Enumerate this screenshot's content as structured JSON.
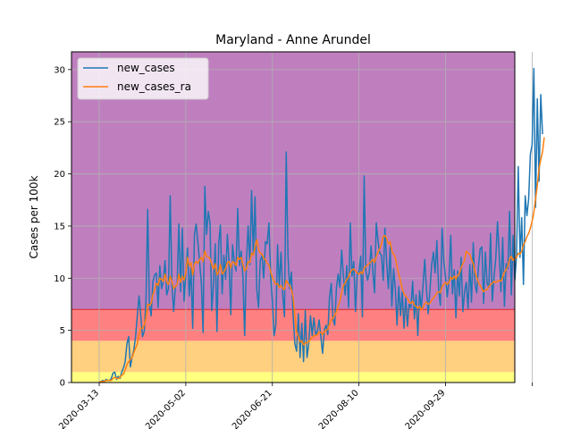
{
  "chart_data": {
    "type": "line",
    "title": "Maryland - Anne Arundel",
    "xlabel": "",
    "ylabel": "Cases per 100k",
    "x_start_date": "2020-03-13",
    "x_range": [
      -16,
      240
    ],
    "ylim": [
      0,
      31.7
    ],
    "grid": true,
    "legend_position": "top-left",
    "x_tick_labels": [
      "2020-03-13",
      "2020-05-02",
      "2020-06-21",
      "2020-08-10",
      "2020-09-29"
    ],
    "y_ticks": [
      0,
      5,
      10,
      15,
      20,
      25,
      30
    ],
    "y_tick_labels": [
      "0",
      "5",
      "10",
      "15",
      "20",
      "25",
      "30"
    ],
    "bands": [
      {
        "from": 0,
        "to": 1,
        "color": "#ffff80"
      },
      {
        "from": 1,
        "to": 4,
        "color": "#ffd080"
      },
      {
        "from": 4,
        "to": 7,
        "color": "#ff8080"
      },
      {
        "from": 7,
        "to": 31.7,
        "color": "#bf7fbf"
      }
    ],
    "series": [
      {
        "name": "new_cases",
        "color": "#1f77b4",
        "values": [
          0,
          0.1,
          0.2,
          0.1,
          0.3,
          0.2,
          0.2,
          0.4,
          0.9,
          1.0,
          0.3,
          0.6,
          0.4,
          1.0,
          1.4,
          2.0,
          3.7,
          4.4,
          1.5,
          2.5,
          3.1,
          4.4,
          6.4,
          8.3,
          6.4,
          4.4,
          4.9,
          7.8,
          16.6,
          7.5,
          6.4,
          9.7,
          10.3,
          10.5,
          7.2,
          11.2,
          9.0,
          9.7,
          11.7,
          8.4,
          9.0,
          17.9,
          9.4,
          6.8,
          9.2,
          9.4,
          15.2,
          8.7,
          14.8,
          7.8,
          10.4,
          12.9,
          8.3,
          11.0,
          5.2,
          14.2,
          15.2,
          13.4,
          11.5,
          9.5,
          4.8,
          18.8,
          14.2,
          16.4,
          15.3,
          6.9,
          9.5,
          13.3,
          4.9,
          13.3,
          15.1,
          8.5,
          12.2,
          9.9,
          14.2,
          11.5,
          6.5,
          13.2,
          11.6,
          10.7,
          16.7,
          11.2,
          12.6,
          10.1,
          4.5,
          11.6,
          15.0,
          11.3,
          18.4,
          12.3,
          17.8,
          8.9,
          7.2,
          11.7,
          12.2,
          10.0,
          13.5,
          13.3,
          15.3,
          10.2,
          7.8,
          4.5,
          5.5,
          13.2,
          9.3,
          12.5,
          8.4,
          6.3,
          22.1,
          12.2,
          9.0,
          10.6,
          6.4,
          3.7,
          3.0,
          6.6,
          2.4,
          5.7,
          2.0,
          6.9,
          2.4,
          3.7,
          6.4,
          4.5,
          6.2,
          4.6,
          4.9,
          6.0,
          4.4,
          2.8,
          5.0,
          5.5,
          4.6,
          8.2,
          9.5,
          6.1,
          5.5,
          9.1,
          10.4,
          9.1,
          12.7,
          10.3,
          8.4,
          11.2,
          7.2,
          15.3,
          10.2,
          11.6,
          6.8,
          10.5,
          10.6,
          12.1,
          6.3,
          19.8,
          10.7,
          9.8,
          10.6,
          13.1,
          10.7,
          8.6,
          15.3,
          13.6,
          12.4,
          12.2,
          9.8,
          14.8,
          11.5,
          9.0,
          13.0,
          7.3,
          10.9,
          9.0,
          5.5,
          9.2,
          6.4,
          8.7,
          5.2,
          8.1,
          5.4,
          7.5,
          7.2,
          9.7,
          6.1,
          8.4,
          4.5,
          8.8,
          7.1,
          9.3,
          11.8,
          8.9,
          6.6,
          8.9,
          11.3,
          12.5,
          10.5,
          13.6,
          8.9,
          7.4,
          14.8,
          11.6,
          10.1,
          8.2,
          9.9,
          14.1,
          8.5,
          10.8,
          6.2,
          10.7,
          8.3,
          12.0,
          6.8,
          8.7,
          9.6,
          7.1,
          11.3,
          7.7,
          13.4,
          9.5,
          8.6,
          11.1,
          12.8,
          13.0,
          7.6,
          12.5,
          9.5,
          9.1,
          14.3,
          7.8,
          10.1,
          11.9,
          15.4,
          12.4,
          8.7,
          13.9,
          7.3,
          11.4,
          10.9,
          16.4,
          8.4,
          14.1,
          9.8,
          12.2,
          20.7,
          12.0,
          15.8,
          9.4,
          17.9,
          16.0,
          17.6,
          21.9,
          22.8,
          30.1,
          16.8,
          27.2,
          19.3,
          27.6,
          23.8
        ]
      },
      {
        "name": "new_cases_ra",
        "color": "#ff7f0e",
        "values": [
          0,
          0.1,
          0.1,
          0.1,
          0.2,
          0.2,
          0.2,
          0.2,
          0.4,
          0.5,
          0.4,
          0.4,
          0.5,
          0.7,
          0.8,
          1.2,
          1.7,
          2.0,
          2.2,
          2.4,
          2.9,
          3.3,
          3.7,
          4.6,
          5.2,
          5.2,
          5.5,
          6.2,
          7.5,
          7.4,
          7.6,
          8.4,
          8.9,
          9.5,
          9.3,
          10.0,
          9.9,
          9.7,
          10.4,
          9.6,
          9.4,
          10.2,
          9.7,
          9.0,
          9.2,
          9.4,
          10.4,
          9.6,
          10.2,
          9.8,
          10.5,
          12.0,
          11.2,
          11.5,
          10.3,
          11.4,
          11.6,
          11.4,
          11.8,
          12.0,
          11.6,
          12.6,
          12.1,
          12.0,
          11.9,
          11.3,
          10.9,
          11.4,
          10.3,
          10.6,
          11.3,
          10.4,
          10.6,
          10.9,
          11.5,
          11.6,
          11.0,
          11.6,
          11.5,
          11.2,
          12.0,
          11.8,
          12.0,
          11.3,
          10.7,
          10.9,
          11.6,
          11.5,
          12.4,
          12.2,
          13.0,
          13.7,
          12.8,
          12.4,
          12.3,
          11.9,
          11.8,
          11.4,
          11.3,
          10.6,
          10.1,
          9.7,
          9.4,
          9.5,
          9.1,
          9.3,
          9.0,
          8.9,
          9.8,
          9.5,
          9.3,
          8.9,
          8.2,
          6.3,
          4.8,
          4.4,
          3.9,
          4.0,
          3.6,
          3.8,
          3.8,
          3.9,
          4.2,
          4.3,
          4.5,
          4.5,
          4.6,
          4.8,
          4.8,
          4.6,
          4.9,
          5.0,
          5.1,
          5.6,
          6.0,
          6.2,
          6.4,
          6.8,
          7.3,
          7.8,
          8.6,
          9.3,
          9.5,
          9.9,
          10.1,
          10.6,
          10.8,
          10.9,
          10.7,
          10.5,
          10.4,
          10.6,
          10.4,
          11.0,
          11.1,
          11.3,
          11.4,
          11.6,
          11.8,
          11.5,
          12.1,
          12.5,
          12.8,
          13.3,
          14.0,
          14.1,
          13.8,
          13.3,
          13.5,
          12.6,
          12.3,
          12.0,
          11.1,
          10.4,
          9.7,
          9.0,
          8.5,
          8.3,
          8.1,
          7.7,
          7.6,
          7.8,
          7.4,
          7.3,
          7.1,
          7.3,
          7.0,
          7.2,
          7.6,
          7.7,
          7.5,
          7.6,
          7.9,
          8.1,
          8.3,
          8.6,
          8.7,
          8.6,
          9.2,
          9.4,
          9.6,
          9.4,
          9.6,
          10.1,
          9.9,
          10.2,
          9.9,
          10.3,
          10.4,
          11.0,
          11.4,
          11.7,
          12.6,
          12.4,
          12.3,
          11.8,
          11.4,
          10.6,
          10.1,
          9.6,
          9.3,
          9.0,
          8.7,
          8.9,
          8.9,
          9.2,
          9.4,
          9.5,
          9.7,
          9.6,
          9.7,
          9.8,
          9.7,
          10.1,
          10.6,
          10.8,
          11.2,
          11.8,
          12.1,
          11.7,
          11.9,
          12.0,
          12.4,
          12.3,
          12.6,
          13.2,
          13.5,
          14.0,
          14.3,
          14.8,
          15.5,
          16.3,
          17.6,
          18.9,
          20.5,
          21.4,
          22.1,
          23.5
        ]
      }
    ]
  }
}
